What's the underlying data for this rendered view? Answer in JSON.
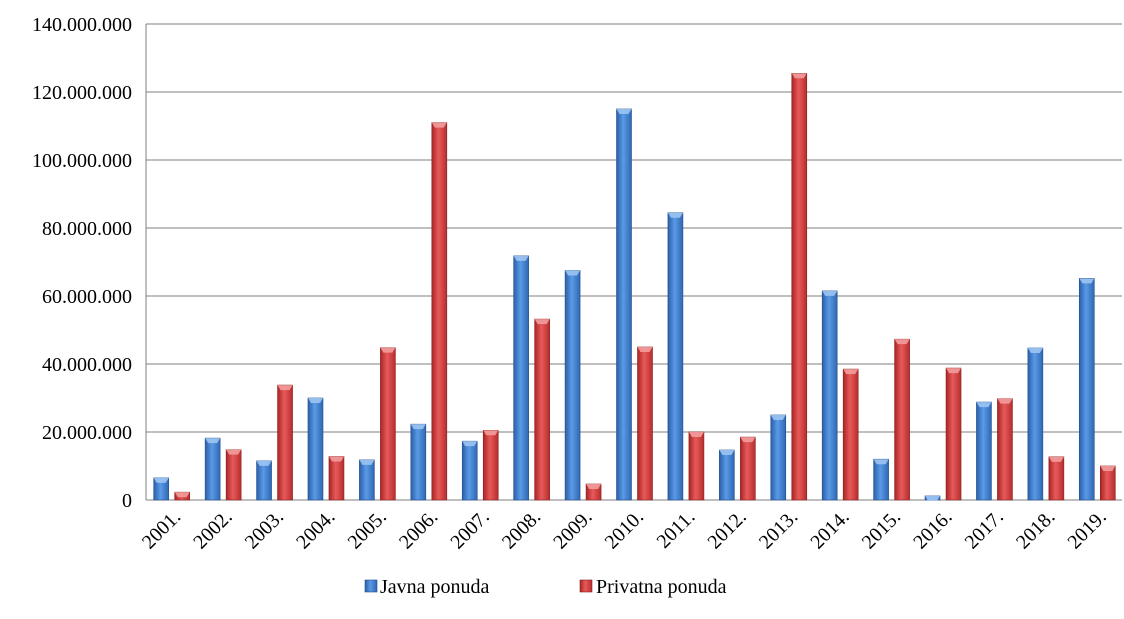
{
  "chart_data": {
    "type": "bar",
    "title": "",
    "xlabel": "",
    "ylabel": "",
    "ylim": [
      0,
      140000000
    ],
    "yticks": [
      0,
      20000000,
      40000000,
      60000000,
      80000000,
      100000000,
      120000000,
      140000000
    ],
    "ytick_labels": [
      "0",
      "20.000.000",
      "40.000.000",
      "60.000.000",
      "80.000.000",
      "100.000.000",
      "120.000.000",
      "140.000.000"
    ],
    "grid": true,
    "legend_position": "bottom",
    "categories": [
      "2001.",
      "2002.",
      "2003.",
      "2004.",
      "2005.",
      "2006.",
      "2007.",
      "2008.",
      "2009.",
      "2010.",
      "2011.",
      "2012.",
      "2013.",
      "2014.",
      "2015.",
      "2016.",
      "2017.",
      "2018.",
      "2019."
    ],
    "series": [
      {
        "name": "Javna ponuda",
        "color": "#3f7fd0",
        "values": [
          6500000,
          18200000,
          11500000,
          30000000,
          11800000,
          22300000,
          17300000,
          71800000,
          67500000,
          115000000,
          84500000,
          14700000,
          25000000,
          61500000,
          12000000,
          1200000,
          28800000,
          44700000,
          65200000
        ]
      },
      {
        "name": "Privatna ponuda",
        "color": "#d23c3c",
        "values": [
          2300000,
          14800000,
          33800000,
          12800000,
          44800000,
          111000000,
          20500000,
          53200000,
          4700000,
          45000000,
          20000000,
          18500000,
          125500000,
          38500000,
          47300000,
          38800000,
          29800000,
          12700000,
          10000000
        ]
      }
    ]
  }
}
